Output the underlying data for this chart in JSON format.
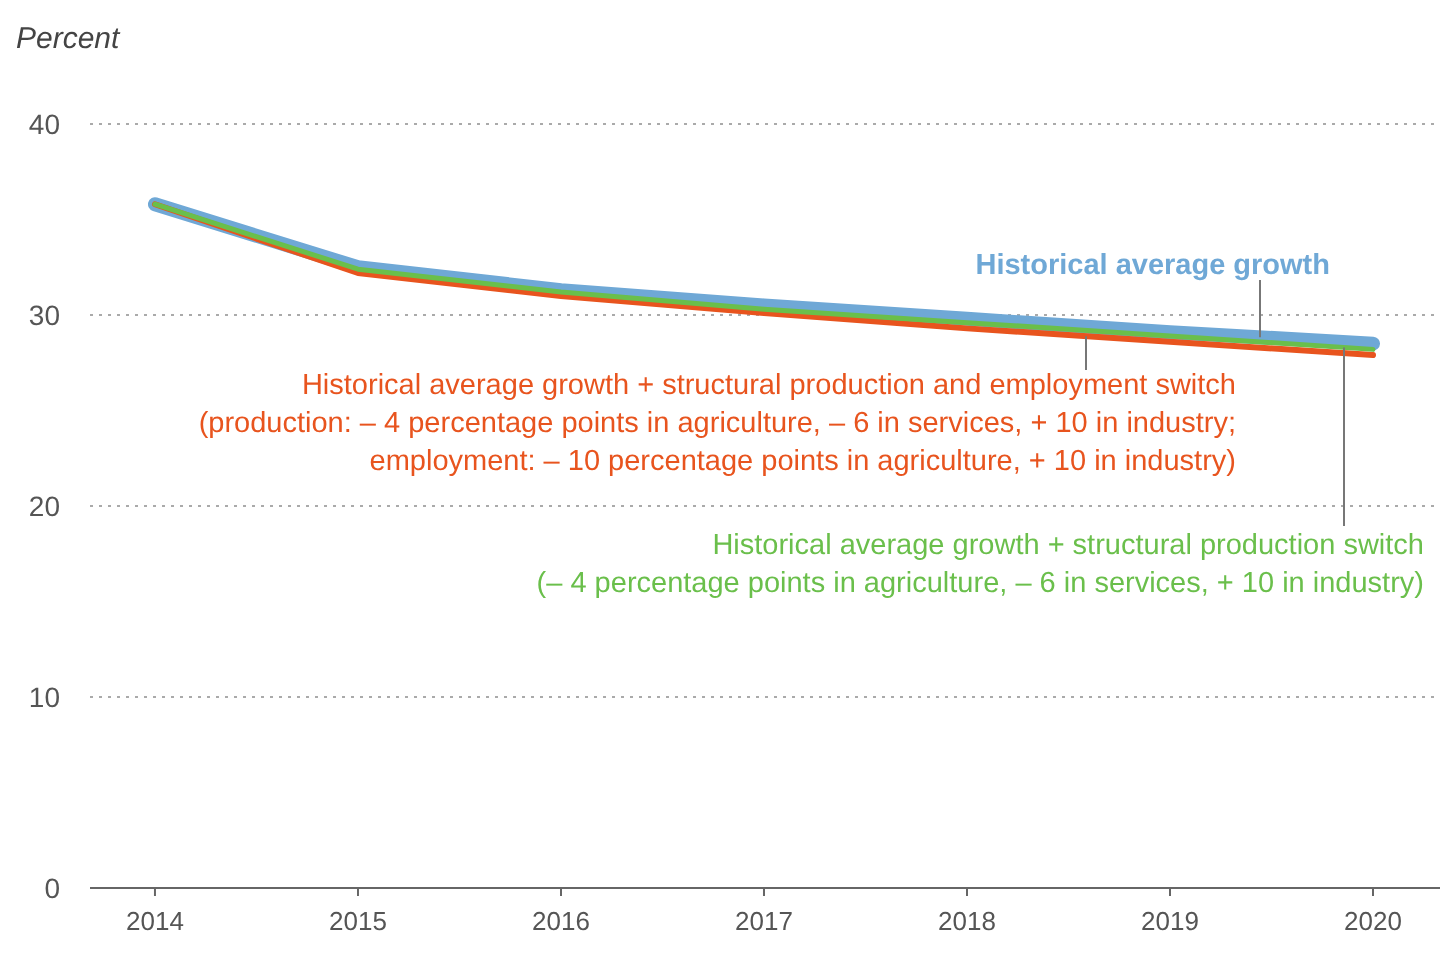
{
  "chart_data": {
    "type": "line",
    "ylabel": "Percent",
    "x": [
      2014,
      2015,
      2016,
      2017,
      2018,
      2019,
      2020
    ],
    "xlim": [
      2013.68,
      2020.33
    ],
    "xticks": [
      2014,
      2015,
      2016,
      2017,
      2018,
      2019,
      2020
    ],
    "ylim": [
      0,
      40
    ],
    "yticks": [
      0,
      10,
      20,
      30,
      40
    ],
    "grid": "y",
    "legend": false,
    "marker": "none",
    "line_style": "solid",
    "series": [
      {
        "name": "Historical average growth + structural production and employment switch\n(production: – 4 percentage points in agriculture, – 6 in services, + 10 in industry;\nemployment: – 10 percentage points in agriculture, + 10 in industry)",
        "color": "#e8541e",
        "values": [
          35.8,
          32.2,
          31.0,
          30.1,
          29.3,
          28.6,
          27.9
        ]
      },
      {
        "name": "Historical average growth + structural production switch\n(– 4 percentage points in agriculture, – 6 in services, + 10 in industry)",
        "color": "#6abf4b",
        "values": [
          35.8,
          32.4,
          31.2,
          30.3,
          29.6,
          28.9,
          28.2
        ]
      },
      {
        "name": "Historical average growth",
        "color": "#6fa8d6",
        "values": [
          35.8,
          32.5,
          31.3,
          30.5,
          29.8,
          29.1,
          28.5
        ]
      }
    ]
  }
}
